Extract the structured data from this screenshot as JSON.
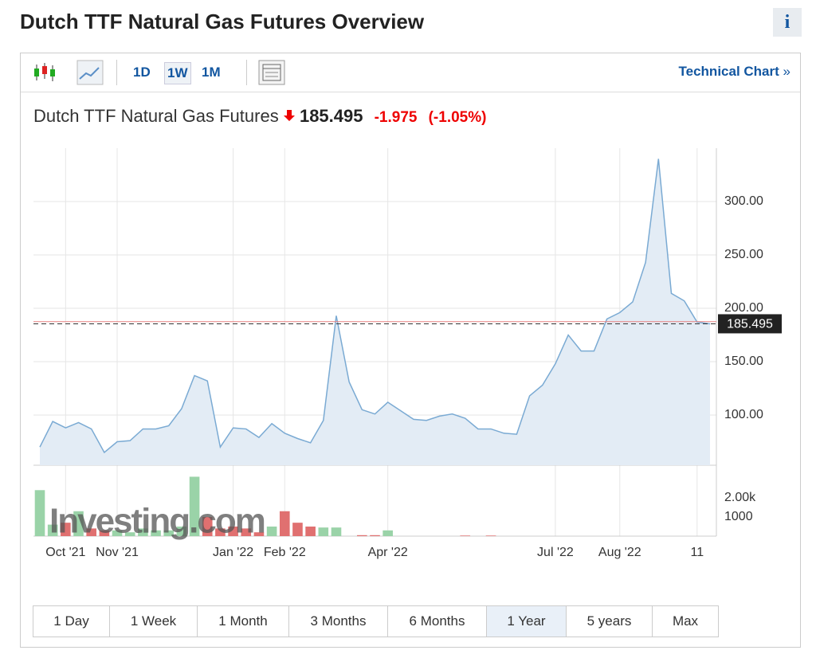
{
  "header": {
    "title": "Dutch TTF Natural Gas Futures Overview",
    "info": "i"
  },
  "toolbar": {
    "intervals": [
      "1D",
      "1W",
      "1M"
    ],
    "selected_interval": "1W",
    "link": "Technical Chart",
    "link_arrow": "»"
  },
  "quote": {
    "name": "Dutch TTF Natural Gas Futures",
    "price": 185.495,
    "change": -1.975,
    "change_percent": -1.05,
    "change_percent_label": "(-1.05%)"
  },
  "chart_data": {
    "type": "line",
    "categories": [
      null,
      null,
      "Oct '21",
      null,
      null,
      null,
      "Nov '21",
      null,
      null,
      null,
      null,
      null,
      null,
      null,
      null,
      "Jan '22",
      null,
      null,
      null,
      "Feb '22",
      null,
      null,
      null,
      null,
      null,
      null,
      null,
      "Apr '22",
      null,
      null,
      null,
      null,
      null,
      null,
      null,
      null,
      null,
      null,
      null,
      null,
      "Jul '22",
      null,
      null,
      null,
      null,
      "Aug '22",
      null,
      null,
      null,
      null,
      null,
      "11",
      null
    ],
    "values": [
      70,
      94,
      88,
      93,
      87,
      65,
      75,
      76,
      87,
      87,
      90,
      106,
      137,
      132,
      70,
      88,
      87,
      79,
      92,
      83,
      78,
      74,
      95,
      193,
      131,
      105,
      101,
      112,
      104,
      96,
      95,
      99,
      101,
      97,
      87,
      87,
      83,
      82,
      118,
      128,
      148,
      175,
      160,
      160,
      190,
      196,
      206,
      243,
      340,
      214,
      207,
      187,
      185.495
    ],
    "color": "#7aaad3",
    "fill": "#e3ecf5",
    "ylim": [
      53,
      350
    ],
    "yticks": [
      {
        "value": 100,
        "label": "100.00"
      },
      {
        "value": 150,
        "label": "150.00"
      },
      {
        "value": 200,
        "label": "200.00"
      },
      {
        "value": 250,
        "label": "250.00"
      },
      {
        "value": 300,
        "label": "300.00"
      }
    ],
    "grid": true,
    "reference_line": 187.47,
    "reference_color": "#e88080",
    "watermark": "Investing.com",
    "volume": {
      "values": [
        2400,
        600,
        700,
        1300,
        400,
        300,
        300,
        200,
        400,
        300,
        300,
        500,
        3100,
        1000,
        400,
        500,
        400,
        200,
        500,
        1300,
        700,
        500,
        450,
        450,
        null,
        50,
        50,
        300,
        null,
        null,
        null,
        null,
        null,
        30,
        null,
        30,
        null,
        null,
        null,
        null,
        null,
        null,
        null,
        null,
        null,
        null,
        null,
        null,
        null,
        null,
        null,
        null,
        null
      ],
      "colors": [
        "#9ad3a8",
        "#9ad3a8",
        "#e07070",
        "#9ad3a8",
        "#e07070",
        "#e07070",
        "#9ad3a8",
        "#9ad3a8",
        "#9ad3a8",
        "#9ad3a8",
        "#9ad3a8",
        "#9ad3a8",
        "#9ad3a8",
        "#e07070",
        "#e07070",
        "#e07070",
        "#e07070",
        "#e07070",
        "#9ad3a8",
        "#e07070",
        "#e07070",
        "#e07070",
        "#9ad3a8",
        "#9ad3a8",
        null,
        "#e07070",
        "#e07070",
        "#9ad3a8",
        null,
        null,
        null,
        null,
        null,
        "#e07070",
        null,
        "#e07070",
        null,
        null,
        null,
        null,
        null,
        null,
        null,
        null,
        null,
        null,
        null,
        null,
        null,
        null,
        null,
        null,
        null
      ],
      "ylim": [
        0,
        3700
      ],
      "yticks": [
        1000,
        {
          "value": 2000,
          "label": "2.00k"
        }
      ]
    }
  },
  "range_buttons": {
    "labels": [
      "1 Day",
      "1 Week",
      "1 Month",
      "3 Months",
      "6 Months",
      "1 Year",
      "5 years",
      "Max"
    ],
    "selected": "1 Year"
  }
}
